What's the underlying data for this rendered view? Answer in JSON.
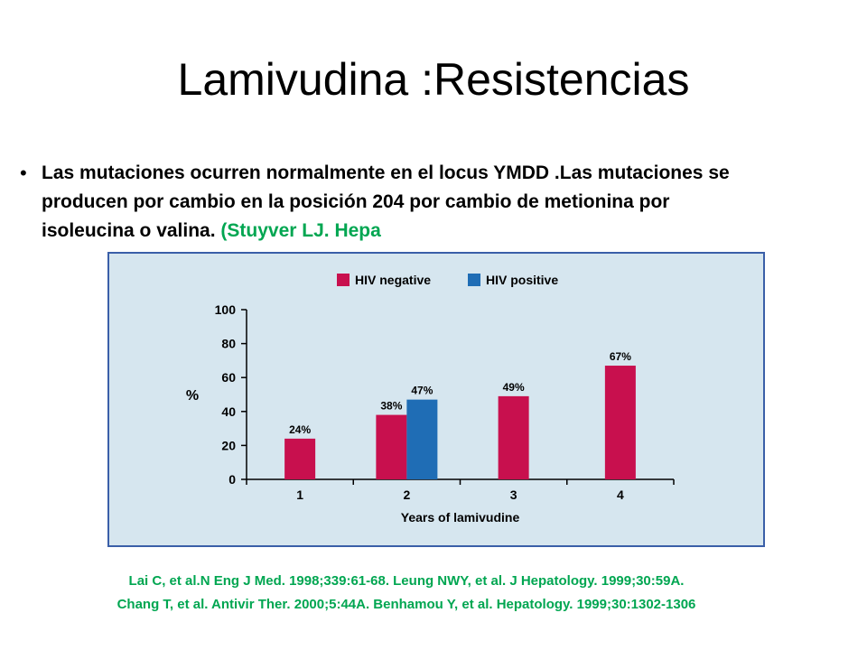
{
  "slide": {
    "title": "Lamivudina :Resistencias",
    "bullet": "Las mutaciones ocurren normalmente en el locus YMDD .Las mutaciones se producen por cambio en la posición 204 por cambio de metionina por isoleucina o valina.",
    "bullet_ref": "(Stuyver LJ. Hepa",
    "references_line1": "Lai C, et al.N Eng J Med. 1998;339:61-68. Leung NWY, et al. J Hepatology. 1999;30:59A.",
    "references_line2": "Chang T, et al. Antivir Ther. 2000;5:44A. Benhamou Y, et al. Hepatology. 1999;30:1302-1306"
  },
  "chart_data": {
    "type": "bar",
    "categories": [
      "1",
      "2",
      "3",
      "4"
    ],
    "series": [
      {
        "name": "HIV negative",
        "color": "#c8104e",
        "values": [
          24,
          38,
          49,
          67
        ],
        "labels": [
          "24%",
          "38%",
          "49%",
          "67%"
        ]
      },
      {
        "name": "HIV positive",
        "color": "#1f6db5",
        "values": [
          null,
          47,
          null,
          null
        ],
        "labels": [
          null,
          "47%",
          null,
          null
        ]
      }
    ],
    "xlabel": "Years of lamivudine",
    "ylabel": "%",
    "ylim": [
      0,
      100
    ],
    "yticks": [
      0,
      20,
      40,
      60,
      80,
      100
    ],
    "legend_position": "top",
    "grid": false
  }
}
